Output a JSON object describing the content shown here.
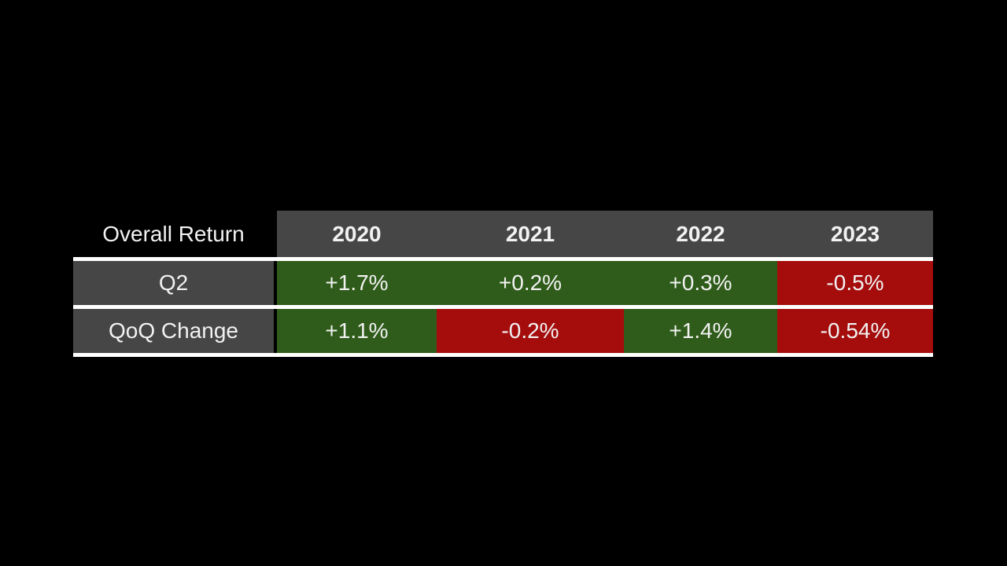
{
  "colors": {
    "background": "#000000",
    "header_bg": "#464646",
    "label_bg": "#464646",
    "positive_bg": "#2f5c1a",
    "negative_bg": "#a50d0d",
    "separator": "#ffffff",
    "text": "#f2f2f2"
  },
  "chart_data": {
    "type": "table",
    "title": "Overall Return",
    "columns": [
      "2020",
      "2021",
      "2022",
      "2023"
    ],
    "rows": [
      {
        "label": "Q2",
        "cells": [
          {
            "value": "+1.7%",
            "sentiment": "positive",
            "bg": "#2f5c1a"
          },
          {
            "value": "+0.2%",
            "sentiment": "positive",
            "bg": "#2f5c1a"
          },
          {
            "value": "+0.3%",
            "sentiment": "positive",
            "bg": "#2f5c1a"
          },
          {
            "value": "-0.5%",
            "sentiment": "negative",
            "bg": "#a50d0d"
          }
        ]
      },
      {
        "label": "QoQ Change",
        "cells": [
          {
            "value": "+1.1%",
            "sentiment": "positive",
            "bg": "#2f5c1a"
          },
          {
            "value": "-0.2%",
            "sentiment": "negative",
            "bg": "#a50d0d"
          },
          {
            "value": "+1.4%",
            "sentiment": "positive",
            "bg": "#2f5c1a"
          },
          {
            "value": "-0.54%",
            "sentiment": "negative",
            "bg": "#a50d0d"
          }
        ]
      }
    ]
  }
}
